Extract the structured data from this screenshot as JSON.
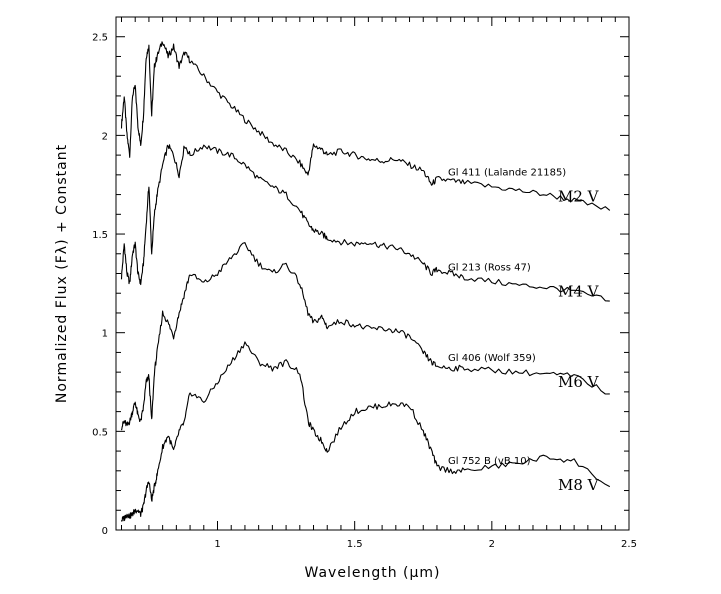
{
  "chart_data": {
    "type": "line",
    "xlabel": "Wavelength (μm)",
    "ylabel": "Normalized Flux (Fλ) + Constant",
    "xlim": [
      0.63,
      2.5
    ],
    "ylim": [
      0,
      2.6
    ],
    "x_ticks": [
      1,
      1.5,
      2,
      2.5
    ],
    "x_tick_labels": [
      "1",
      "1.5",
      "2",
      "2.5"
    ],
    "y_ticks": [
      0,
      0.5,
      1,
      1.5,
      2,
      2.5
    ],
    "y_tick_labels": [
      "0",
      "0.5",
      "1",
      "1.5",
      "2",
      "2.5"
    ],
    "grid": false,
    "legend": "none",
    "line_color": "#000000",
    "series": [
      {
        "star": "Gl 411 (Lalande 21185)",
        "spectral_type": "M2 V",
        "x": [
          0.65,
          0.66,
          0.67,
          0.68,
          0.69,
          0.7,
          0.71,
          0.72,
          0.73,
          0.74,
          0.75,
          0.76,
          0.77,
          0.78,
          0.8,
          0.82,
          0.84,
          0.86,
          0.88,
          0.9,
          0.95,
          1.0,
          1.05,
          1.1,
          1.15,
          1.2,
          1.25,
          1.3,
          1.33,
          1.35,
          1.38,
          1.4,
          1.45,
          1.5,
          1.55,
          1.6,
          1.65,
          1.7,
          1.75,
          1.78,
          1.8,
          1.85,
          1.9,
          2.0,
          2.1,
          2.2,
          2.3,
          2.43
        ],
        "y": [
          2.05,
          2.2,
          2.0,
          1.9,
          2.2,
          2.25,
          2.05,
          1.95,
          2.1,
          2.4,
          2.45,
          2.1,
          2.35,
          2.4,
          2.48,
          2.4,
          2.45,
          2.35,
          2.42,
          2.38,
          2.3,
          2.22,
          2.15,
          2.08,
          2.02,
          1.96,
          1.92,
          1.86,
          1.8,
          1.95,
          1.93,
          1.9,
          1.92,
          1.9,
          1.88,
          1.87,
          1.88,
          1.85,
          1.82,
          1.75,
          1.78,
          1.77,
          1.76,
          1.74,
          1.72,
          1.7,
          1.67,
          1.62
        ]
      },
      {
        "star": "Gl 213 (Ross 47)",
        "spectral_type": "M4 V",
        "x": [
          0.65,
          0.66,
          0.67,
          0.68,
          0.69,
          0.7,
          0.71,
          0.72,
          0.73,
          0.74,
          0.75,
          0.76,
          0.77,
          0.78,
          0.8,
          0.82,
          0.84,
          0.86,
          0.88,
          0.9,
          0.95,
          1.0,
          1.05,
          1.1,
          1.15,
          1.2,
          1.25,
          1.3,
          1.33,
          1.35,
          1.38,
          1.4,
          1.45,
          1.5,
          1.55,
          1.6,
          1.65,
          1.7,
          1.75,
          1.78,
          1.8,
          1.85,
          1.9,
          2.0,
          2.1,
          2.2,
          2.3,
          2.43
        ],
        "y": [
          1.28,
          1.45,
          1.3,
          1.25,
          1.4,
          1.45,
          1.3,
          1.25,
          1.35,
          1.55,
          1.75,
          1.4,
          1.6,
          1.7,
          1.85,
          1.95,
          1.9,
          1.8,
          1.95,
          1.9,
          1.95,
          1.92,
          1.9,
          1.85,
          1.78,
          1.74,
          1.7,
          1.62,
          1.55,
          1.52,
          1.5,
          1.48,
          1.46,
          1.45,
          1.46,
          1.44,
          1.43,
          1.4,
          1.35,
          1.3,
          1.32,
          1.3,
          1.28,
          1.26,
          1.24,
          1.23,
          1.21,
          1.16
        ]
      },
      {
        "star": "Gl 406 (Wolf 359)",
        "spectral_type": "M6 V",
        "x": [
          0.65,
          0.66,
          0.67,
          0.68,
          0.69,
          0.7,
          0.71,
          0.72,
          0.73,
          0.74,
          0.75,
          0.76,
          0.77,
          0.78,
          0.8,
          0.82,
          0.84,
          0.86,
          0.88,
          0.9,
          0.95,
          1.0,
          1.05,
          1.1,
          1.15,
          1.2,
          1.25,
          1.3,
          1.33,
          1.35,
          1.38,
          1.4,
          1.45,
          1.5,
          1.55,
          1.6,
          1.65,
          1.7,
          1.75,
          1.78,
          1.8,
          1.85,
          1.9,
          2.0,
          2.1,
          2.2,
          2.3,
          2.43
        ],
        "y": [
          0.52,
          0.55,
          0.53,
          0.55,
          0.6,
          0.65,
          0.58,
          0.55,
          0.62,
          0.75,
          0.78,
          0.55,
          0.8,
          0.9,
          1.1,
          1.05,
          0.98,
          1.1,
          1.2,
          1.3,
          1.25,
          1.3,
          1.38,
          1.45,
          1.35,
          1.3,
          1.35,
          1.25,
          1.1,
          1.05,
          1.08,
          1.03,
          1.06,
          1.04,
          1.02,
          1.02,
          1.01,
          0.98,
          0.9,
          0.85,
          0.83,
          0.82,
          0.82,
          0.81,
          0.8,
          0.79,
          0.78,
          0.69
        ]
      },
      {
        "star": "Gl 752 B (vB 10)",
        "spectral_type": "M8 V",
        "x": [
          0.65,
          0.66,
          0.67,
          0.68,
          0.69,
          0.7,
          0.71,
          0.72,
          0.73,
          0.74,
          0.75,
          0.76,
          0.77,
          0.78,
          0.8,
          0.82,
          0.84,
          0.86,
          0.88,
          0.9,
          0.95,
          1.0,
          1.05,
          1.1,
          1.15,
          1.2,
          1.25,
          1.3,
          1.33,
          1.35,
          1.38,
          1.4,
          1.45,
          1.5,
          1.55,
          1.6,
          1.65,
          1.7,
          1.75,
          1.78,
          1.8,
          1.85,
          1.9,
          2.0,
          2.1,
          2.2,
          2.3,
          2.43
        ],
        "y": [
          0.05,
          0.06,
          0.08,
          0.07,
          0.08,
          0.1,
          0.1,
          0.08,
          0.12,
          0.2,
          0.25,
          0.15,
          0.22,
          0.28,
          0.42,
          0.48,
          0.4,
          0.5,
          0.55,
          0.7,
          0.65,
          0.75,
          0.85,
          0.95,
          0.85,
          0.82,
          0.85,
          0.8,
          0.55,
          0.5,
          0.45,
          0.4,
          0.52,
          0.6,
          0.62,
          0.63,
          0.64,
          0.63,
          0.5,
          0.4,
          0.32,
          0.3,
          0.3,
          0.32,
          0.34,
          0.37,
          0.35,
          0.22
        ]
      }
    ]
  }
}
